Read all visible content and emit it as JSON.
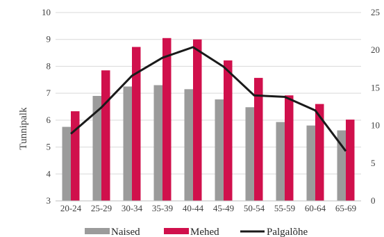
{
  "chart_data": {
    "type": "bar",
    "categories": [
      "20-24",
      "25-29",
      "30-34",
      "35-39",
      "40-44",
      "45-49",
      "50-54",
      "55-59",
      "60-64",
      "65-69"
    ],
    "series": [
      {
        "name": "Naised",
        "type": "bar",
        "axis": "left",
        "color": "#9b9b9b",
        "values": [
          5.75,
          6.9,
          7.25,
          7.3,
          7.15,
          6.77,
          6.48,
          5.93,
          5.8,
          5.62
        ]
      },
      {
        "name": "Mehed",
        "type": "bar",
        "axis": "left",
        "color": "#d0104c",
        "values": [
          6.33,
          7.85,
          8.72,
          9.05,
          9.0,
          8.22,
          7.57,
          6.92,
          6.6,
          6.02
        ]
      },
      {
        "name": "Palgalõhe",
        "type": "line",
        "axis": "right",
        "color": "#1a1a1a",
        "values": [
          8.9,
          12.4,
          16.6,
          19.0,
          20.4,
          17.8,
          14.0,
          13.8,
          12.0,
          6.6
        ]
      }
    ],
    "ylabel": "Tunnipalk",
    "ylim": [
      3,
      10
    ],
    "yticks": [
      "3",
      "4",
      "5",
      "6",
      "7",
      "8",
      "9",
      "10"
    ],
    "y2lim": [
      0,
      25
    ],
    "y2ticks": [
      "0",
      "5",
      "10",
      "15",
      "20",
      "25"
    ],
    "grid": true,
    "legend": "bottom"
  }
}
